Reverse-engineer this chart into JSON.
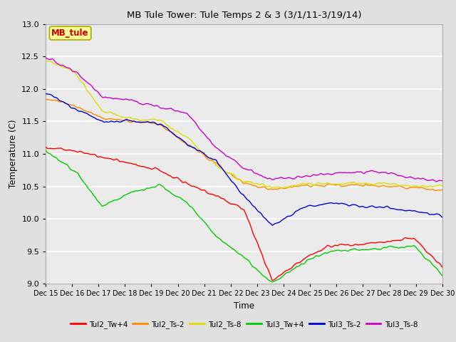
{
  "title": "MB Tule Tower: Tule Temps 2 & 3 (3/1/11-3/19/14)",
  "xlabel": "Time",
  "ylabel": "Temperature (C)",
  "ylim": [
    9.0,
    13.0
  ],
  "yticks": [
    9.0,
    9.5,
    10.0,
    10.5,
    11.0,
    11.5,
    12.0,
    12.5,
    13.0
  ],
  "xtick_labels": [
    "Dec 15",
    "Dec 16",
    "Dec 17",
    "Dec 18",
    "Dec 19",
    "Dec 20",
    "Dec 21",
    "Dec 22",
    "Dec 23",
    "Dec 24",
    "Dec 25",
    "Dec 26",
    "Dec 27",
    "Dec 28",
    "Dec 29",
    "Dec 30"
  ],
  "legend_label": "MB_tule",
  "legend_box_facecolor": "#ffff99",
  "legend_box_edgecolor": "#aaaa00",
  "legend_text_color": "#cc0000",
  "bg_color": "#e0e0e0",
  "plot_bg_color": "#ebebeb",
  "grid_color": "#ffffff",
  "series": {
    "Tul2_Tw+4": {
      "color": "#ff0000",
      "data": [
        11.1,
        11.05,
        10.95,
        10.85,
        10.75,
        10.55,
        10.35,
        10.15,
        9.05,
        9.35,
        9.6,
        9.6,
        9.65,
        9.7,
        9.25
      ]
    },
    "Tul2_Ts-2": {
      "color": "#ff8800",
      "data": [
        11.85,
        11.75,
        11.55,
        11.5,
        11.45,
        11.15,
        10.85,
        10.55,
        10.45,
        10.5,
        10.52,
        10.52,
        10.5,
        10.48,
        10.45
      ]
    },
    "Tul2_Ts-8": {
      "color": "#dddd00",
      "data": [
        12.45,
        12.28,
        11.65,
        11.55,
        11.52,
        11.25,
        10.82,
        10.58,
        10.48,
        10.52,
        10.55,
        10.55,
        10.55,
        10.5,
        10.5
      ]
    },
    "Tul3_Tw+4": {
      "color": "#00cc00",
      "data": [
        11.05,
        10.75,
        10.2,
        10.4,
        10.52,
        10.25,
        9.75,
        9.4,
        9.0,
        9.3,
        9.5,
        9.52,
        9.55,
        9.58,
        9.15
      ]
    },
    "Tul3_Ts-2": {
      "color": "#0000dd",
      "data": [
        11.95,
        11.7,
        11.5,
        11.5,
        11.48,
        11.15,
        10.9,
        10.35,
        9.9,
        10.15,
        10.25,
        10.2,
        10.18,
        10.12,
        10.05
      ]
    },
    "Tul3_Ts-8": {
      "color": "#cc00cc",
      "data": [
        12.48,
        12.28,
        11.88,
        11.82,
        11.72,
        11.62,
        11.1,
        10.78,
        10.6,
        10.65,
        10.7,
        10.72,
        10.72,
        10.62,
        10.58
      ]
    }
  }
}
